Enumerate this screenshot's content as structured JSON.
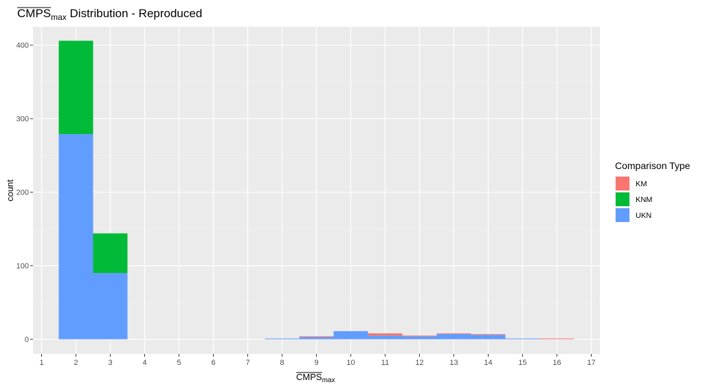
{
  "chart_data": {
    "type": "bar",
    "stacked": true,
    "title": {
      "main": "CMPS",
      "sub": "max",
      "rest": " Distribution - Reproduced"
    },
    "xlabel": {
      "main": "CMPS",
      "sub": "max"
    },
    "ylabel": "count",
    "x": [
      1,
      2,
      3,
      4,
      5,
      6,
      7,
      8,
      9,
      10,
      11,
      12,
      13,
      14,
      15,
      16,
      17
    ],
    "x_tick_labels": [
      "1",
      "2",
      "3",
      "4",
      "5",
      "6",
      "7",
      "8",
      "9",
      "10",
      "11",
      "12",
      "13",
      "14",
      "15",
      "16",
      "17"
    ],
    "xlim": [
      0.75,
      17.25
    ],
    "ylim": [
      -20,
      425
    ],
    "y_ticks": [
      0,
      100,
      200,
      300,
      400
    ],
    "y_tick_labels": [
      "0",
      "100",
      "200",
      "300",
      "400"
    ],
    "grid": true,
    "legend_position": "right",
    "legend_title": "Comparison Type",
    "series": [
      {
        "name": "KM",
        "color": "#F8766D",
        "values": [
          0,
          0,
          0,
          0,
          0,
          0,
          0,
          0,
          1,
          0,
          3,
          1,
          1,
          1,
          0,
          1,
          0
        ]
      },
      {
        "name": "KNM",
        "color": "#00BA38",
        "values": [
          0,
          127,
          54,
          0,
          0,
          0,
          0,
          0,
          0,
          0,
          0,
          0,
          0,
          0,
          0,
          0,
          0
        ]
      },
      {
        "name": "UKN",
        "color": "#619CFF",
        "values": [
          0,
          279,
          90,
          0,
          0,
          0,
          0,
          1,
          3,
          11,
          5,
          4,
          7,
          6,
          1,
          0,
          0
        ]
      }
    ]
  }
}
